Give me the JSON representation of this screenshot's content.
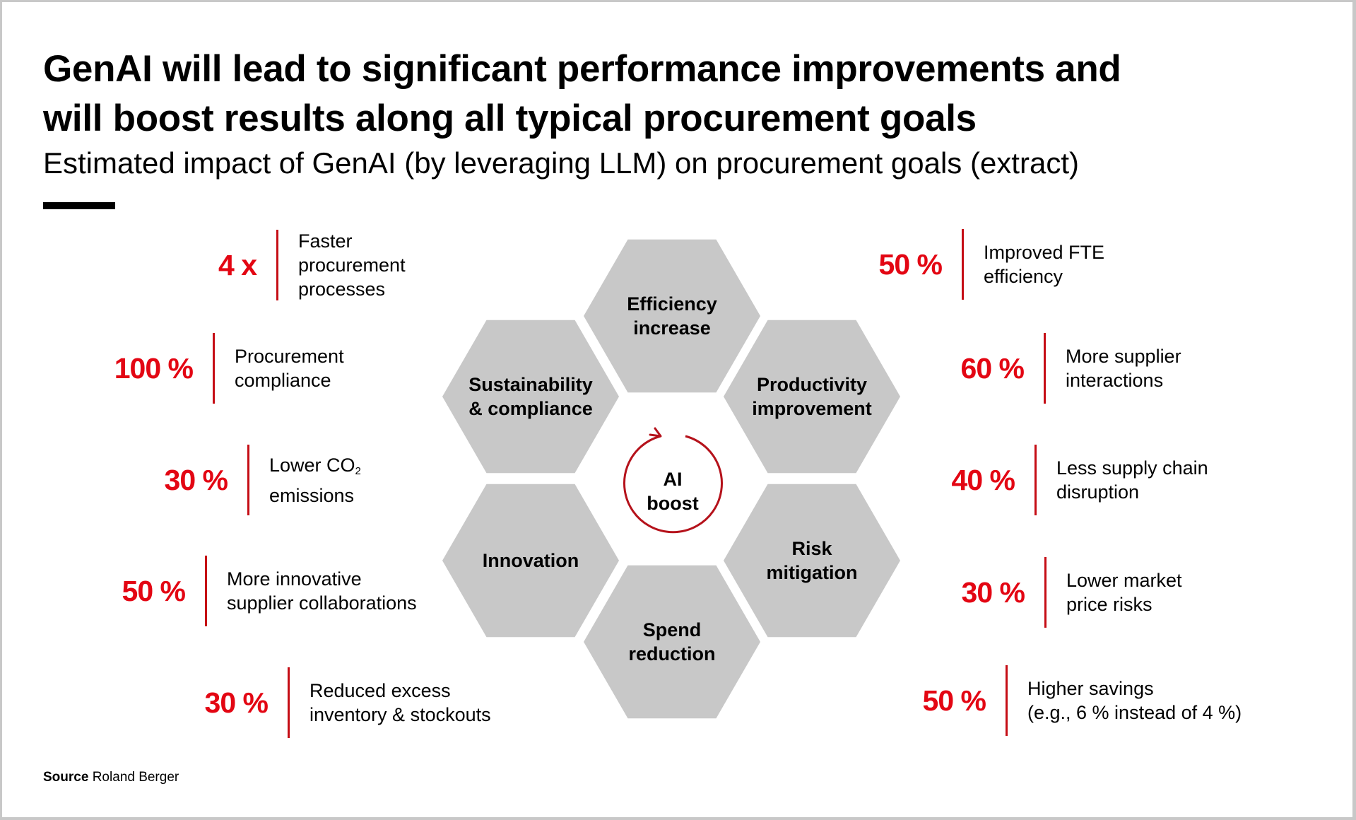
{
  "header": {
    "title_line1": "GenAI will lead to significant performance improvements and",
    "title_line2": "will boost results along all typical procurement goals",
    "subtitle": "Estimated impact of GenAI (by leveraging LLM) on procurement goals (extract)"
  },
  "center": {
    "label_line1": "AI",
    "label_line2": "boost",
    "icon": "circular-arrow-icon"
  },
  "hexagons": [
    {
      "id": "efficiency",
      "line1": "Efficiency",
      "line2": "increase"
    },
    {
      "id": "productivity",
      "line1": "Productivity",
      "line2": "improvement"
    },
    {
      "id": "risk",
      "line1": "Risk",
      "line2": "mitigation"
    },
    {
      "id": "spend",
      "line1": "Spend",
      "line2": "reduction"
    },
    {
      "id": "innovation",
      "line1": "Innovation",
      "line2": ""
    },
    {
      "id": "sustainability",
      "line1": "Sustainability",
      "line2": "& compliance"
    }
  ],
  "left_metrics": [
    {
      "value": "4 x",
      "lines": [
        "Faster",
        "procurement",
        "processes"
      ]
    },
    {
      "value": "100 %",
      "lines": [
        "Procurement",
        "compliance"
      ]
    },
    {
      "value": "30 %",
      "lines": [
        "Lower CO",
        "emissions"
      ],
      "subscript": "2"
    },
    {
      "value": "50 %",
      "lines": [
        "More innovative",
        "supplier collaborations"
      ]
    },
    {
      "value": "30 %",
      "lines": [
        "Reduced excess",
        "inventory & stockouts"
      ]
    }
  ],
  "right_metrics": [
    {
      "value": "50 %",
      "lines": [
        "Improved FTE",
        "efficiency"
      ]
    },
    {
      "value": "60 %",
      "lines": [
        "More supplier",
        "interactions"
      ]
    },
    {
      "value": "40 %",
      "lines": [
        "Less supply chain",
        "disruption"
      ]
    },
    {
      "value": "30 %",
      "lines": [
        "Lower market",
        "price risks"
      ]
    },
    {
      "value": "50 %",
      "lines": [
        "Higher savings",
        "(e.g., 6 % instead of 4 %)"
      ]
    }
  ],
  "footer": {
    "source_label": "Source",
    "source_value": "Roland Berger"
  },
  "colors": {
    "accent_red": "#e30613",
    "divider_red": "#c50d15",
    "hex_gray": "#c8c8c8",
    "text": "#000000"
  }
}
